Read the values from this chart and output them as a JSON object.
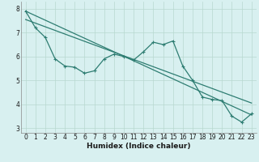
{
  "xlabel": "Humidex (Indice chaleur)",
  "bg_color": "#d8f0f0",
  "grid_color": "#b8d8d0",
  "line_color": "#2e7d72",
  "xlim": [
    -0.5,
    23.5
  ],
  "ylim": [
    2.8,
    8.3
  ],
  "yticks": [
    3,
    4,
    5,
    6,
    7,
    8
  ],
  "xticks": [
    0,
    1,
    2,
    3,
    4,
    5,
    6,
    7,
    8,
    9,
    10,
    11,
    12,
    13,
    14,
    15,
    16,
    17,
    18,
    19,
    20,
    21,
    22,
    23
  ],
  "line1_x": [
    0,
    1,
    2,
    3,
    4,
    5,
    6,
    7,
    8,
    9,
    10,
    11,
    12,
    13,
    14,
    15,
    16,
    17,
    18,
    19,
    20,
    21,
    22,
    23
  ],
  "line1_y": [
    7.9,
    7.2,
    6.8,
    5.9,
    5.6,
    5.55,
    5.3,
    5.4,
    5.9,
    6.1,
    6.0,
    5.85,
    6.2,
    6.6,
    6.5,
    6.65,
    5.6,
    5.0,
    4.3,
    4.2,
    4.15,
    3.5,
    3.25,
    3.6
  ],
  "line2_x": [
    0,
    23
  ],
  "line2_y": [
    7.9,
    3.55
  ],
  "line3_x": [
    0,
    23
  ],
  "line3_y": [
    7.55,
    4.05
  ]
}
